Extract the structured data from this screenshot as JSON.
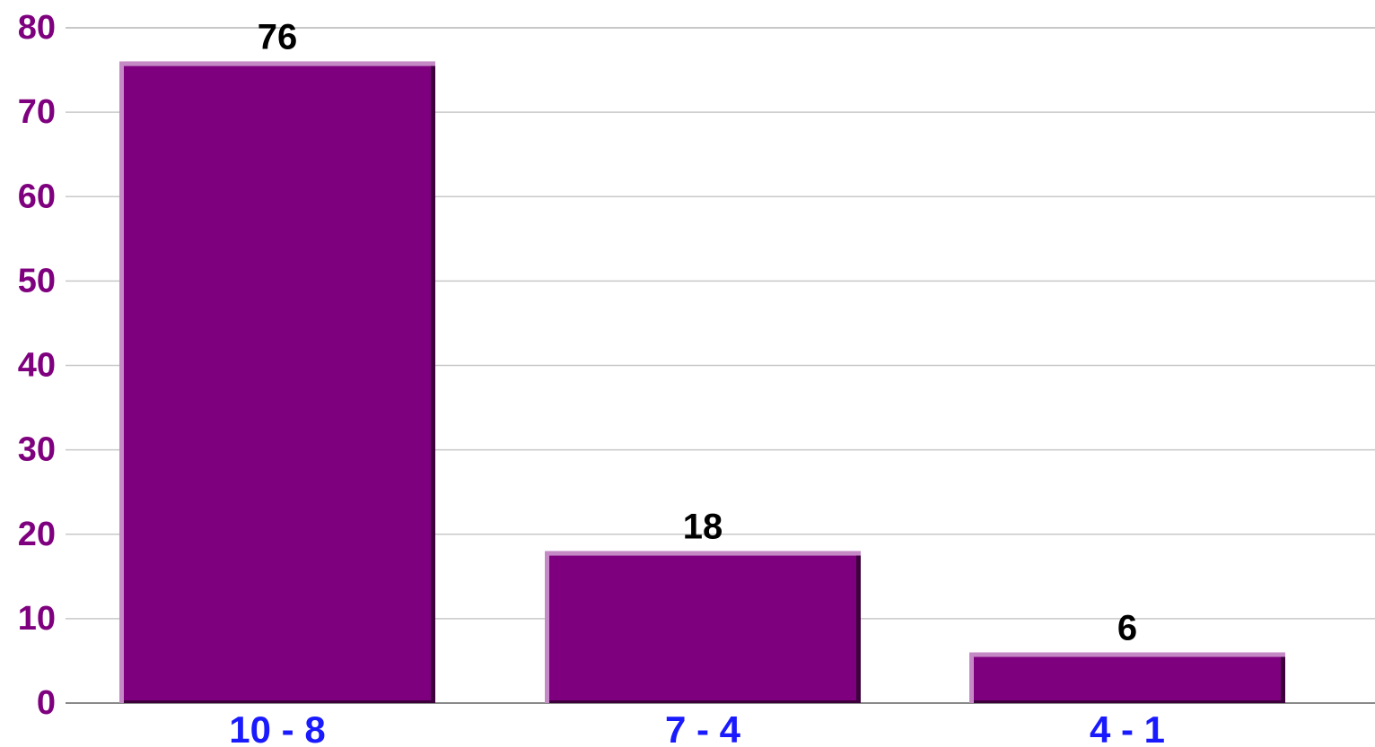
{
  "colors": {
    "bar_fill": "#7f007f",
    "bar_highlight": "#c58ac5",
    "bar_shadow": "#3d003d",
    "y_tick_text": "#7f007f",
    "x_tick_text": "#1a1aff",
    "gridline": "#c8c8c8",
    "axis_line": "#8a8a8a"
  },
  "chart_data": {
    "type": "bar",
    "title": "",
    "xlabel": "",
    "ylabel": "",
    "categories": [
      "10 - 8",
      "7 - 4",
      "4 - 1"
    ],
    "values": [
      76,
      18,
      6
    ],
    "data_labels": [
      "76",
      "18",
      "6"
    ],
    "ylim": [
      0,
      80
    ],
    "yticks": [
      0,
      10,
      20,
      30,
      40,
      50,
      60,
      70,
      80
    ],
    "ytick_labels": [
      "0",
      "10",
      "20",
      "30",
      "40",
      "50",
      "60",
      "70",
      "80"
    ],
    "grid": true,
    "legend": "none"
  }
}
